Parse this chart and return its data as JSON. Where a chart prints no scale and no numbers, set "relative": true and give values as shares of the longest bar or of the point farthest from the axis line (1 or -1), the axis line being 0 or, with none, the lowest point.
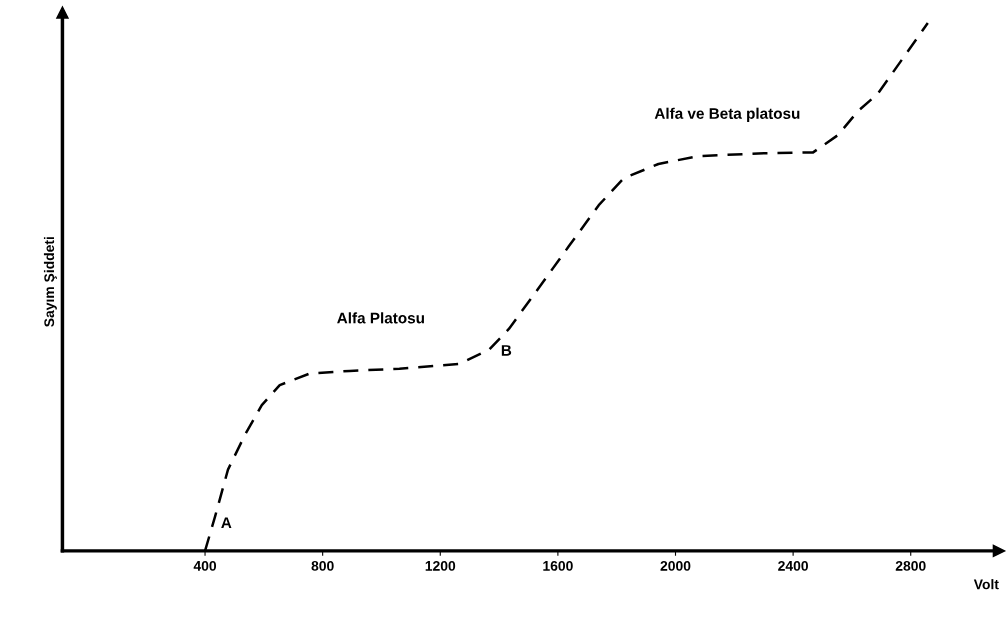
{
  "chart_data": {
    "type": "line",
    "relative": true,
    "xlabel": "Volt",
    "ylabel": "Sayım Şiddeti",
    "x": [
      400,
      434,
      478,
      536,
      593,
      654,
      756,
      892,
      1061,
      1264,
      1366,
      1434,
      1536,
      1637,
      1739,
      1824,
      1942,
      2078,
      2281,
      2468,
      2553,
      2620,
      2688,
      2773,
      2858
    ],
    "series": [
      {
        "color": "#000000",
        "values": [
          0,
          0.065,
          0.154,
          0.22,
          0.276,
          0.314,
          0.336,
          0.341,
          0.345,
          0.354,
          0.381,
          0.421,
          0.499,
          0.577,
          0.655,
          0.706,
          0.733,
          0.748,
          0.753,
          0.755,
          0.788,
          0.833,
          0.866,
          0.933,
          1.0
        ]
      }
    ],
    "line_style": "dashed",
    "marker": "none",
    "grid": false,
    "legend": false,
    "xlim": [
      -85,
      3100
    ],
    "xticks": [
      400,
      800,
      1200,
      1600,
      2000,
      2400,
      2800
    ],
    "annotations": [
      "A",
      "B",
      "Alfa Platosu",
      "Alfa ve Beta platosu"
    ]
  }
}
